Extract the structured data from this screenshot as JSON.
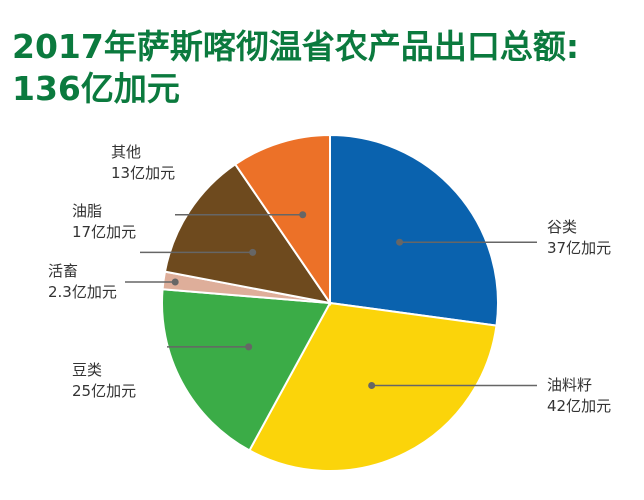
{
  "title": {
    "line1": "2017年萨斯喀彻温省农产品出口总额:",
    "line2": "136亿加元"
  },
  "chart_data": {
    "type": "pie",
    "title": "2017年萨斯喀彻温省农产品出口总额: 136亿加元",
    "unit": "亿加元",
    "total": 136,
    "slices": [
      {
        "label": "谷类",
        "value_text": "37亿加元",
        "value": 37,
        "color": "#0a62ae"
      },
      {
        "label": "油料籽",
        "value_text": "42亿加元",
        "value": 42,
        "color": "#fbd40a"
      },
      {
        "label": "豆类",
        "value_text": "25亿加元",
        "value": 25,
        "color": "#3bac47"
      },
      {
        "label": "活畜",
        "value_text": "2.3亿加元",
        "value": 2.3,
        "color": "#deae9a"
      },
      {
        "label": "油脂",
        "value_text": "17亿加元",
        "value": 17,
        "color": "#6e4a1e"
      },
      {
        "label": "其他",
        "value_text": "13亿加元",
        "value": 13,
        "color": "#ec7128"
      }
    ]
  }
}
